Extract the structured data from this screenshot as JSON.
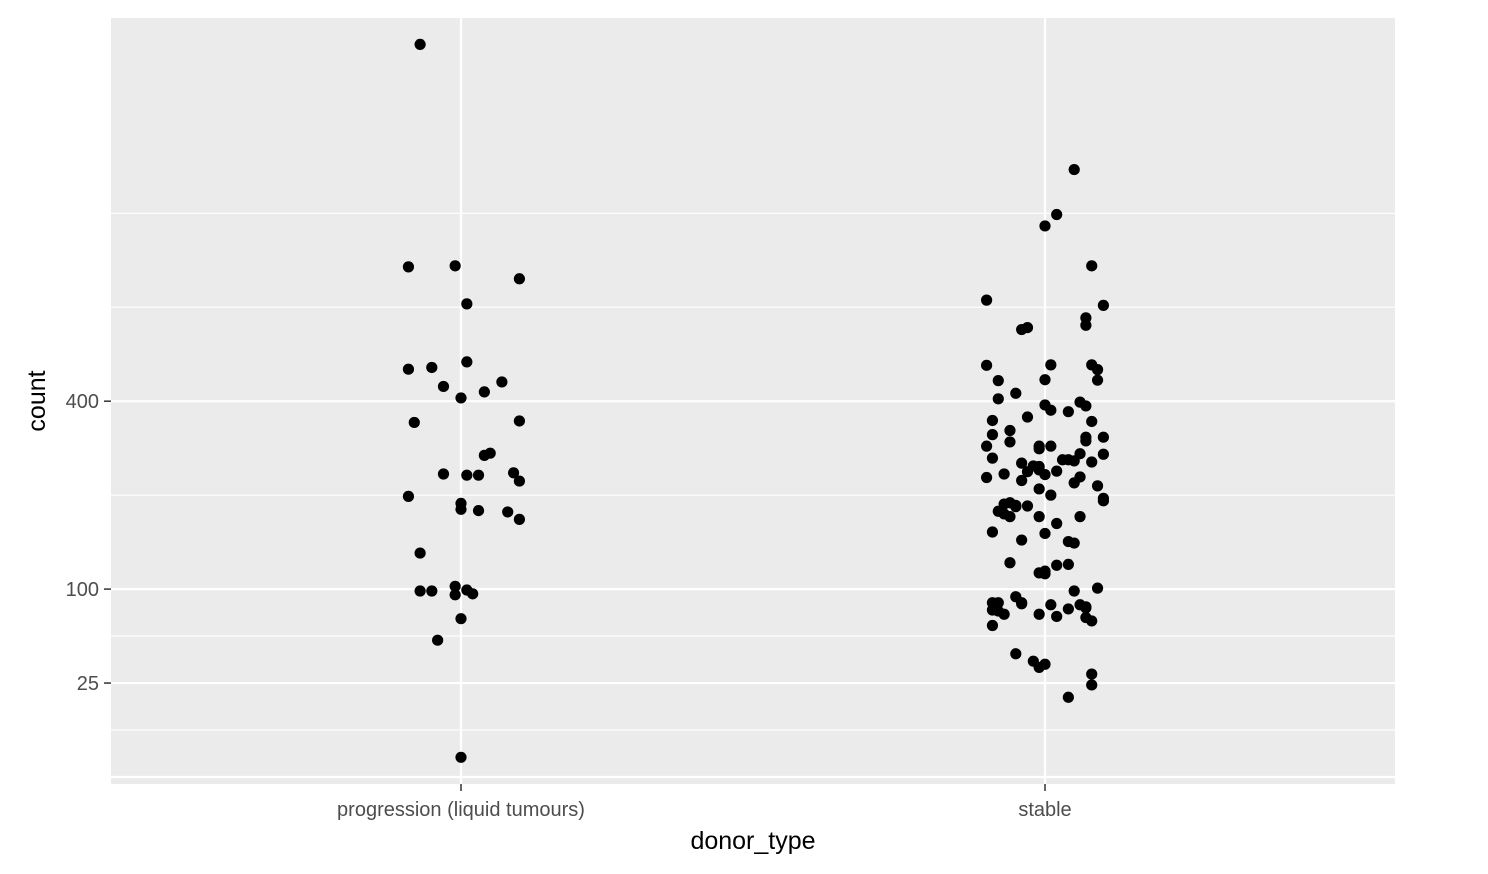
{
  "chart_data": {
    "type": "scatter",
    "subtype": "jitter-strip",
    "xlabel": "donor_type",
    "ylabel": "count",
    "y_scale": "sqrt",
    "y_ticks": [
      25,
      100,
      400
    ],
    "y_tick_labels": [
      "25",
      "100",
      "400"
    ],
    "ylim": [
      0,
      1530
    ],
    "categories": [
      "progression (liquid tumours)",
      "stable"
    ],
    "grid": true,
    "colors": {
      "panel": "#ebebeb",
      "grid": "#ffffff",
      "point": "#000000",
      "text": "#4d4d4d"
    },
    "series": [
      {
        "category": "progression (liquid tumours)",
        "points": [
          {
            "x": -0.07,
            "y": 1520
          },
          {
            "x": -0.09,
            "y": 737
          },
          {
            "x": -0.01,
            "y": 740
          },
          {
            "x": 0.1,
            "y": 703
          },
          {
            "x": 0.01,
            "y": 634
          },
          {
            "x": -0.09,
            "y": 471
          },
          {
            "x": -0.05,
            "y": 475
          },
          {
            "x": 0.01,
            "y": 488
          },
          {
            "x": 0.07,
            "y": 442
          },
          {
            "x": -0.03,
            "y": 432
          },
          {
            "x": 0.04,
            "y": 420
          },
          {
            "x": 0.0,
            "y": 407
          },
          {
            "x": -0.08,
            "y": 356
          },
          {
            "x": 0.1,
            "y": 359
          },
          {
            "x": 0.05,
            "y": 297
          },
          {
            "x": 0.04,
            "y": 293
          },
          {
            "x": 0.09,
            "y": 262
          },
          {
            "x": -0.03,
            "y": 260
          },
          {
            "x": 0.01,
            "y": 258
          },
          {
            "x": 0.03,
            "y": 258
          },
          {
            "x": 0.1,
            "y": 248
          },
          {
            "x": -0.09,
            "y": 223
          },
          {
            "x": 0.0,
            "y": 212
          },
          {
            "x": 0.0,
            "y": 203
          },
          {
            "x": 0.03,
            "y": 201
          },
          {
            "x": 0.08,
            "y": 199
          },
          {
            "x": 0.1,
            "y": 188
          },
          {
            "x": -0.07,
            "y": 142
          },
          {
            "x": -0.01,
            "y": 103
          },
          {
            "x": 0.01,
            "y": 99
          },
          {
            "x": -0.07,
            "y": 98
          },
          {
            "x": -0.05,
            "y": 98
          },
          {
            "x": 0.02,
            "y": 95
          },
          {
            "x": -0.01,
            "y": 94
          },
          {
            "x": 0.0,
            "y": 71
          },
          {
            "x": -0.04,
            "y": 53
          },
          {
            "x": 0.0,
            "y": 1.1
          }
        ]
      },
      {
        "category": "stable",
        "points": [
          {
            "x": 0.05,
            "y": 1045
          },
          {
            "x": 0.02,
            "y": 896
          },
          {
            "x": 0.0,
            "y": 860
          },
          {
            "x": 0.08,
            "y": 740
          },
          {
            "x": -0.1,
            "y": 644
          },
          {
            "x": 0.1,
            "y": 630
          },
          {
            "x": 0.07,
            "y": 597
          },
          {
            "x": 0.07,
            "y": 578
          },
          {
            "x": -0.03,
            "y": 572
          },
          {
            "x": -0.04,
            "y": 567
          },
          {
            "x": -0.1,
            "y": 480
          },
          {
            "x": 0.01,
            "y": 481
          },
          {
            "x": 0.08,
            "y": 481
          },
          {
            "x": 0.09,
            "y": 470
          },
          {
            "x": -0.08,
            "y": 445
          },
          {
            "x": 0.0,
            "y": 447
          },
          {
            "x": 0.09,
            "y": 446
          },
          {
            "x": -0.05,
            "y": 417
          },
          {
            "x": -0.08,
            "y": 405
          },
          {
            "x": 0.06,
            "y": 398
          },
          {
            "x": 0.0,
            "y": 392
          },
          {
            "x": 0.07,
            "y": 390
          },
          {
            "x": 0.01,
            "y": 381
          },
          {
            "x": 0.04,
            "y": 378
          },
          {
            "x": -0.03,
            "y": 367
          },
          {
            "x": -0.09,
            "y": 360
          },
          {
            "x": 0.08,
            "y": 358
          },
          {
            "x": -0.06,
            "y": 340
          },
          {
            "x": -0.09,
            "y": 332
          },
          {
            "x": 0.07,
            "y": 327
          },
          {
            "x": 0.1,
            "y": 327
          },
          {
            "x": -0.06,
            "y": 318
          },
          {
            "x": 0.07,
            "y": 320
          },
          {
            "x": -0.1,
            "y": 310
          },
          {
            "x": -0.01,
            "y": 310
          },
          {
            "x": 0.01,
            "y": 310
          },
          {
            "x": -0.01,
            "y": 305
          },
          {
            "x": 0.06,
            "y": 296
          },
          {
            "x": 0.1,
            "y": 295
          },
          {
            "x": -0.09,
            "y": 288
          },
          {
            "x": 0.03,
            "y": 285
          },
          {
            "x": 0.04,
            "y": 285
          },
          {
            "x": 0.05,
            "y": 283
          },
          {
            "x": 0.08,
            "y": 281
          },
          {
            "x": -0.04,
            "y": 279
          },
          {
            "x": -0.02,
            "y": 274
          },
          {
            "x": -0.01,
            "y": 273
          },
          {
            "x": -0.01,
            "y": 267
          },
          {
            "x": 0.02,
            "y": 265
          },
          {
            "x": -0.03,
            "y": 264
          },
          {
            "x": -0.07,
            "y": 260
          },
          {
            "x": 0.0,
            "y": 259
          },
          {
            "x": -0.1,
            "y": 254
          },
          {
            "x": 0.06,
            "y": 255
          },
          {
            "x": -0.04,
            "y": 249
          },
          {
            "x": 0.05,
            "y": 245
          },
          {
            "x": 0.09,
            "y": 240
          },
          {
            "x": -0.01,
            "y": 235
          },
          {
            "x": 0.01,
            "y": 225
          },
          {
            "x": 0.1,
            "y": 220
          },
          {
            "x": 0.1,
            "y": 216
          },
          {
            "x": -0.06,
            "y": 213
          },
          {
            "x": -0.07,
            "y": 211
          },
          {
            "x": -0.05,
            "y": 209
          },
          {
            "x": -0.03,
            "y": 208
          },
          {
            "x": -0.05,
            "y": 207
          },
          {
            "x": -0.08,
            "y": 200
          },
          {
            "x": -0.07,
            "y": 196
          },
          {
            "x": -0.06,
            "y": 192
          },
          {
            "x": -0.01,
            "y": 192
          },
          {
            "x": 0.06,
            "y": 192
          },
          {
            "x": 0.02,
            "y": 182
          },
          {
            "x": -0.09,
            "y": 170
          },
          {
            "x": 0.0,
            "y": 168
          },
          {
            "x": -0.04,
            "y": 159
          },
          {
            "x": 0.04,
            "y": 157
          },
          {
            "x": 0.05,
            "y": 155
          },
          {
            "x": -0.06,
            "y": 130
          },
          {
            "x": 0.04,
            "y": 128
          },
          {
            "x": 0.02,
            "y": 127
          },
          {
            "x": 0.0,
            "y": 120
          },
          {
            "x": -0.01,
            "y": 118
          },
          {
            "x": 0.0,
            "y": 117
          },
          {
            "x": 0.09,
            "y": 101
          },
          {
            "x": 0.05,
            "y": 98
          },
          {
            "x": -0.05,
            "y": 92
          },
          {
            "x": -0.04,
            "y": 86
          },
          {
            "x": -0.09,
            "y": 86
          },
          {
            "x": -0.08,
            "y": 86
          },
          {
            "x": -0.04,
            "y": 85
          },
          {
            "x": 0.01,
            "y": 84
          },
          {
            "x": 0.06,
            "y": 84
          },
          {
            "x": 0.07,
            "y": 82
          },
          {
            "x": 0.07,
            "y": 81
          },
          {
            "x": 0.04,
            "y": 80
          },
          {
            "x": -0.09,
            "y": 79
          },
          {
            "x": -0.08,
            "y": 78
          },
          {
            "x": -0.07,
            "y": 75
          },
          {
            "x": -0.01,
            "y": 75
          },
          {
            "x": 0.02,
            "y": 73
          },
          {
            "x": 0.07,
            "y": 72
          },
          {
            "x": 0.08,
            "y": 69
          },
          {
            "x": -0.09,
            "y": 65
          },
          {
            "x": -0.05,
            "y": 43
          },
          {
            "x": -0.02,
            "y": 38
          },
          {
            "x": 0.0,
            "y": 36
          },
          {
            "x": -0.01,
            "y": 34
          },
          {
            "x": 0.08,
            "y": 30
          },
          {
            "x": 0.08,
            "y": 24
          },
          {
            "x": 0.04,
            "y": 18
          }
        ]
      }
    ]
  }
}
